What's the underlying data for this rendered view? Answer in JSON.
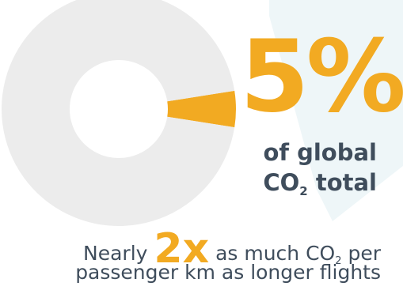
{
  "headline": {
    "percent_text": "5%",
    "line1": "of global",
    "line2_prefix": "CO",
    "line2_subscript": "2",
    "line2_suffix": " total"
  },
  "caption": {
    "prefix": "Nearly ",
    "emphasis": "2x",
    "middle": " as much CO",
    "subscript": "2",
    "suffix": " per",
    "line2": "passenger km as longer flights"
  },
  "chart_data": {
    "type": "pie",
    "slices": [
      {
        "value": 5,
        "color": "#f2aa22"
      },
      {
        "value": 95,
        "color": "#ececec"
      }
    ],
    "donut": true
  },
  "colors": {
    "accent": "#f2aa22",
    "muted": "#ececec",
    "text": "#3f4d5c",
    "backdrop": "#eef6f8"
  }
}
